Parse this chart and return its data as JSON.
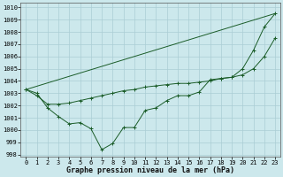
{
  "xlabel": "Graphe pression niveau de la mer (hPa)",
  "background_color": "#cce8ec",
  "grid_color": "#aacdd4",
  "line_color": "#1a5c28",
  "x_ticks": [
    0,
    1,
    2,
    3,
    4,
    5,
    6,
    7,
    8,
    9,
    10,
    11,
    12,
    13,
    14,
    15,
    16,
    17,
    18,
    19,
    20,
    21,
    22,
    23
  ],
  "ylim": [
    997.8,
    1010.4
  ],
  "yticks": [
    998,
    999,
    1000,
    1001,
    1002,
    1003,
    1004,
    1005,
    1006,
    1007,
    1008,
    1009,
    1010
  ],
  "series1_x": [
    0,
    1,
    2,
    3,
    4,
    5,
    6,
    7,
    8,
    9,
    10,
    11,
    12,
    13,
    14,
    15,
    16,
    17,
    18,
    19,
    20,
    21,
    22,
    23
  ],
  "series1_y": [
    1003.3,
    1003.0,
    1001.8,
    1001.1,
    1000.5,
    1000.6,
    1000.1,
    998.4,
    998.9,
    1000.2,
    1000.2,
    1001.6,
    1001.8,
    1002.4,
    1002.8,
    1002.8,
    1003.1,
    1004.1,
    1004.2,
    1004.3,
    1005.0,
    1006.5,
    1008.4,
    1009.5
  ],
  "series2_x": [
    0,
    1,
    2,
    3,
    4,
    5,
    6,
    7,
    8,
    9,
    10,
    11,
    12,
    13,
    14,
    15,
    16,
    17,
    18,
    19,
    20,
    21,
    22,
    23
  ],
  "series2_y": [
    1003.3,
    1002.8,
    1002.1,
    1002.1,
    1002.2,
    1002.4,
    1002.6,
    1002.8,
    1003.0,
    1003.2,
    1003.3,
    1003.5,
    1003.6,
    1003.7,
    1003.8,
    1003.8,
    1003.9,
    1004.0,
    1004.2,
    1004.3,
    1004.5,
    1005.0,
    1006.0,
    1007.5
  ],
  "series3_x": [
    0,
    23
  ],
  "series3_y": [
    1003.3,
    1009.5
  ],
  "tick_fontsize": 5.0,
  "xlabel_fontsize": 6.0
}
